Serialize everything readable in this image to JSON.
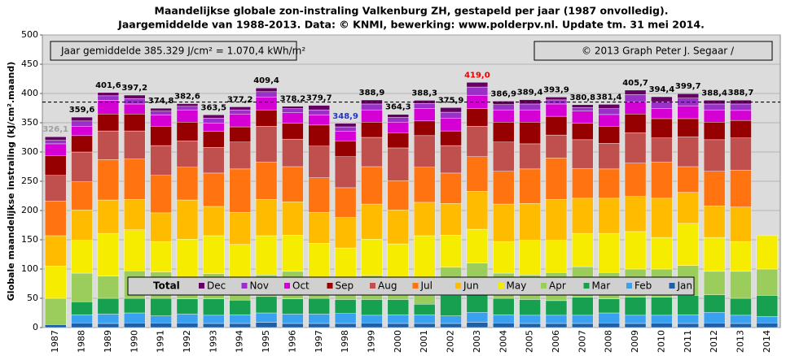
{
  "chart_data": {
    "type": "stacked-bar",
    "title": "Maandelijkse  globale  zon-instraling  Valkenburg  ZH, gestapeld per jaar (1987 onvolledig).",
    "subtitle": "Jaargemiddelde van 1988-2013.  Data: © KNMI,  bewerking:  www.polderpv.nl.  Update tm. 31 mei 2014.",
    "ylabel": "Globale maandelijkse instraling (kJ/cm².maand)",
    "note_left": "Jaar gemiddelde 385.329 J/cm² = 1.070,4 kWh/m²",
    "note_right": "© 2013 Graph  Peter J. Segaar /",
    "legend_title": "Total",
    "average": 385.329,
    "ylim": [
      0,
      500
    ],
    "yticks": [
      0,
      50,
      100,
      150,
      200,
      250,
      300,
      350,
      400,
      450,
      500
    ],
    "grid": true,
    "categories": [
      "1987",
      "1988",
      "1989",
      "1990",
      "1991",
      "1992",
      "1993",
      "1994",
      "1995",
      "1996",
      "1997",
      "1998",
      "1999",
      "2000",
      "2001",
      "2002",
      "2003",
      "2004",
      "2005",
      "2006",
      "2007",
      "2008",
      "2009",
      "2010",
      "2011",
      "2012",
      "2013",
      "2014"
    ],
    "totals": [
      326.1,
      359.6,
      401.6,
      397.2,
      374.8,
      382.6,
      363.5,
      377.2,
      409.4,
      378.2,
      379.7,
      348.9,
      388.9,
      364.3,
      388.3,
      375.9,
      419.0,
      386.9,
      389.4,
      393.9,
      380.8,
      381.4,
      405.7,
      394.4,
      399.7,
      388.4,
      388.7,
      null
    ],
    "total_labels": [
      "326,1",
      "359,6",
      "401,6",
      "397,2",
      "374,8",
      "382,6",
      "363,5",
      "377,2",
      "409,4",
      "378,2",
      "379,7",
      "348,9",
      "388,9",
      "364,3",
      "388,3",
      "375,9",
      "419,0",
      "386,9",
      "389,4",
      "393,9",
      "380,8",
      "381,4",
      "405,7",
      "394,4",
      "399,7",
      "388,4",
      "388,7",
      null
    ],
    "total_label_colors": [
      "#a0a0a0",
      "#000",
      "#000",
      "#000",
      "#000",
      "#000",
      "#000",
      "#000",
      "#000",
      "#000",
      "#000",
      "#2233cc",
      "#000",
      "#000",
      "#000",
      "#000",
      "#ee0000",
      "#000",
      "#000",
      "#000",
      "#000",
      "#000",
      "#000",
      "#000",
      "#000",
      "#000",
      "#000",
      "#000"
    ],
    "series": [
      {
        "name": "Jan",
        "color": "#1f5fa8",
        "values": [
          5,
          8,
          7,
          8,
          8,
          8,
          7,
          7,
          9,
          7,
          7,
          7,
          8,
          7,
          7,
          7,
          9,
          8,
          7,
          7,
          7,
          8,
          7,
          8,
          7,
          8,
          7,
          8
        ]
      },
      {
        "name": "Feb",
        "color": "#3aa0f0",
        "values": [
          0,
          14,
          16,
          17,
          12,
          15,
          14,
          15,
          16,
          16,
          16,
          17,
          13,
          15,
          15,
          13,
          17,
          14,
          14,
          14,
          14,
          17,
          14,
          13,
          15,
          18,
          14,
          11
        ]
      },
      {
        "name": "Mar",
        "color": "#16a050",
        "values": [
          0,
          22,
          27,
          25,
          30,
          26,
          28,
          25,
          28,
          26,
          27,
          24,
          27,
          26,
          18,
          35,
          34,
          28,
          27,
          25,
          31,
          24,
          31,
          31,
          33,
          30,
          29,
          36
        ]
      },
      {
        "name": "Apr",
        "color": "#9acd5c",
        "values": [
          45,
          49,
          38,
          47,
          45,
          37,
          43,
          38,
          37,
          47,
          36,
          33,
          41,
          33,
          45,
          48,
          50,
          43,
          42,
          48,
          52,
          45,
          48,
          48,
          51,
          40,
          46,
          45
        ]
      },
      {
        "name": "May",
        "color": "#f5ec00",
        "values": [
          55,
          56,
          73,
          70,
          52,
          65,
          65,
          57,
          67,
          62,
          58,
          55,
          62,
          62,
          72,
          55,
          58,
          54,
          59,
          55,
          57,
          67,
          64,
          54,
          72,
          58,
          51,
          57
        ]
      },
      {
        "name": "Jun",
        "color": "#ffbb00",
        "values": [
          52,
          52,
          57,
          52,
          49,
          67,
          50,
          55,
          62,
          57,
          53,
          52,
          60,
          58,
          57,
          54,
          65,
          64,
          63,
          70,
          60,
          60,
          60,
          67,
          53,
          54,
          59,
          null
        ]
      },
      {
        "name": "Jul",
        "color": "#ff7411",
        "values": [
          59,
          48,
          69,
          69,
          64,
          56,
          57,
          74,
          64,
          60,
          59,
          51,
          64,
          50,
          60,
          52,
          59,
          56,
          59,
          71,
          51,
          50,
          57,
          62,
          44,
          59,
          63,
          null
        ]
      },
      {
        "name": "Aug",
        "color": "#c0504d",
        "values": [
          44,
          51,
          49,
          48,
          51,
          45,
          44,
          46,
          61,
          47,
          54,
          53,
          50,
          56,
          54,
          47,
          52,
          50,
          43,
          39,
          49,
          44,
          52,
          41,
          51,
          54,
          55,
          null
        ]
      },
      {
        "name": "Sep",
        "color": "#960000",
        "values": [
          34,
          28,
          29,
          29,
          33,
          32,
          27,
          26,
          28,
          27,
          36,
          27,
          26,
          26,
          25,
          25,
          30,
          34,
          37,
          32,
          28,
          29,
          32,
          33,
          31,
          30,
          30,
          null
        ]
      },
      {
        "name": "Oct",
        "color": "#d400d4",
        "values": [
          20,
          16,
          23,
          17,
          19,
          21,
          14,
          22,
          22,
          18,
          17,
          16,
          21,
          18,
          21,
          22,
          23,
          21,
          21,
          21,
          21,
          20,
          21,
          17,
          22,
          21,
          17,
          null
        ]
      },
      {
        "name": "Nov",
        "color": "#9a30c8",
        "values": [
          6,
          9,
          8,
          9,
          7,
          6,
          9,
          7,
          9,
          7,
          9,
          8,
          10,
          8,
          9,
          10,
          14,
          9,
          10,
          7,
          6,
          10,
          12,
          12,
          13,
          10,
          11,
          null
        ]
      },
      {
        "name": "Dec",
        "color": "#640064",
        "values": [
          6.1,
          6.6,
          5.6,
          6.2,
          4.8,
          4.6,
          5.5,
          5.2,
          6.4,
          4.2,
          7.7,
          5.9,
          6.9,
          5.3,
          5.3,
          7.9,
          8,
          5.9,
          7.4,
          4.9,
          4.8,
          7.4,
          7.7,
          8.4,
          7.7,
          6.4,
          6.7,
          null
        ]
      }
    ]
  }
}
